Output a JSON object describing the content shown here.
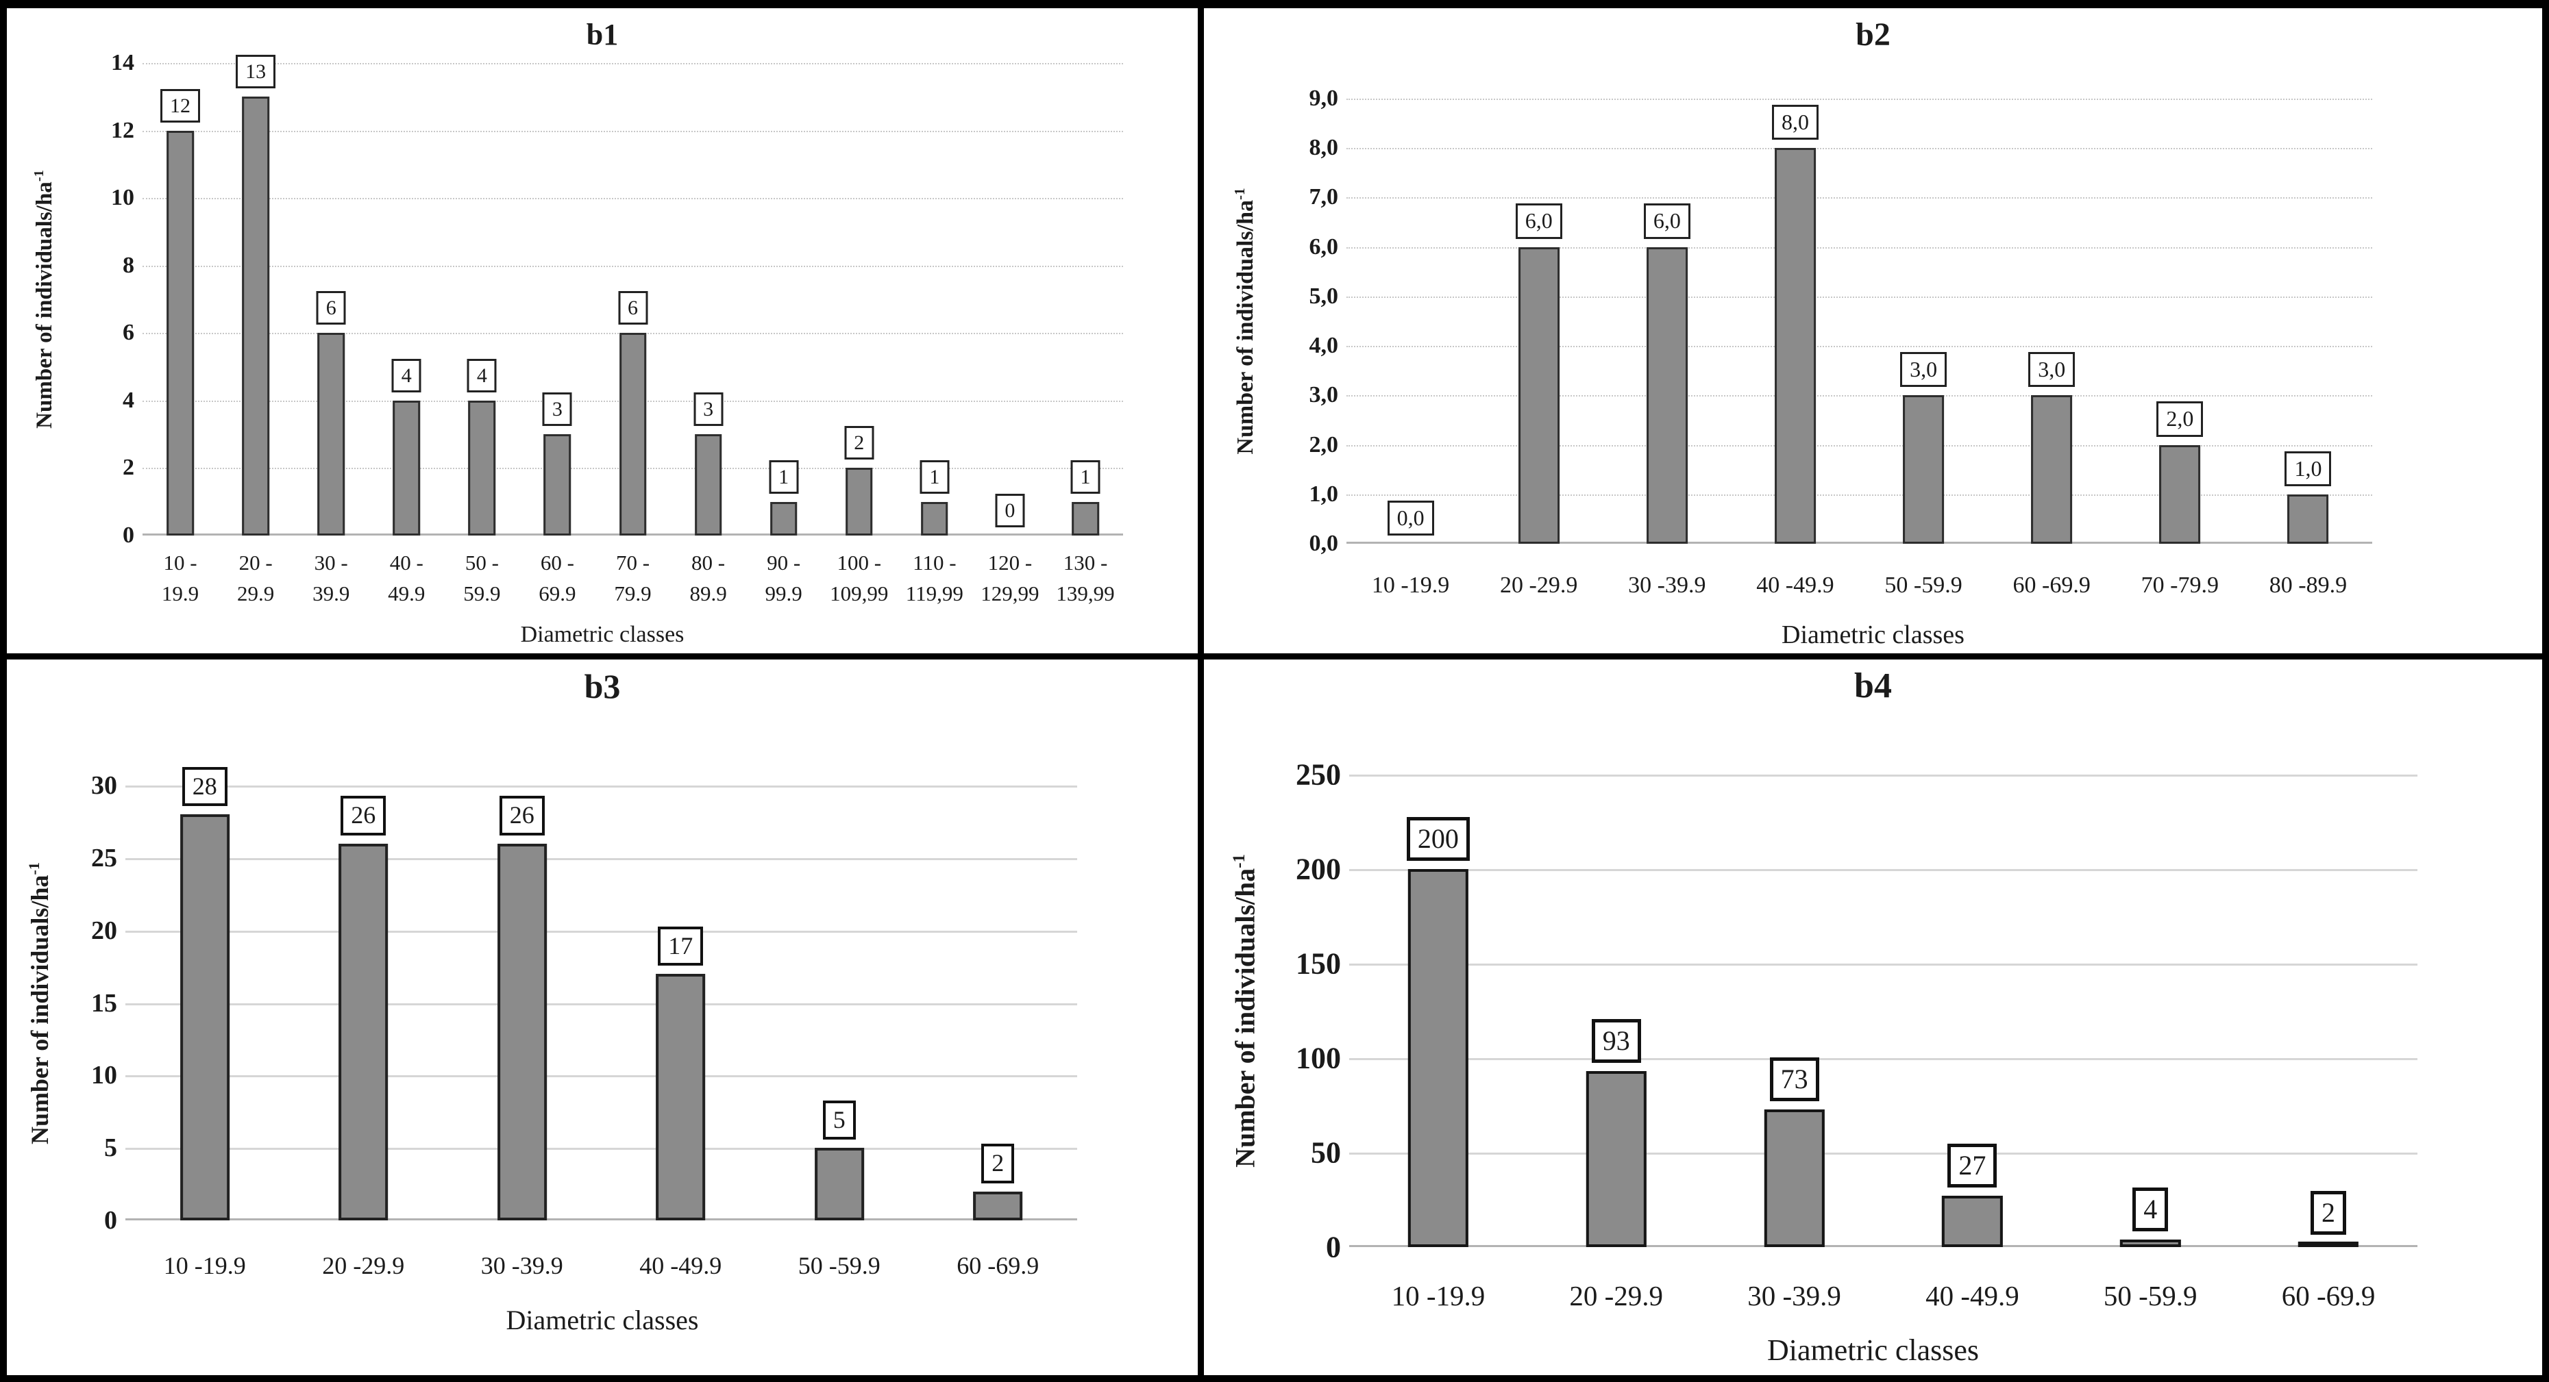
{
  "figure": {
    "background": "#ffffff",
    "border_color": "#000000",
    "bar_fill": "#8b8b8b",
    "bar_border": "#2b2b2b",
    "grid_color": "#d0d0d0",
    "text_color": "#1b1b1b"
  },
  "chart_data": [
    {
      "type": "bar",
      "title": "b1",
      "ylabel": "Number of individuals/ha",
      "ylabel_sup": "-1",
      "xlabel": "Diametric classes",
      "categories": [
        [
          "10 -",
          "19.9"
        ],
        [
          "20 -",
          "29.9"
        ],
        [
          "30 -",
          "39.9"
        ],
        [
          "40 -",
          "49.9"
        ],
        [
          "50 -",
          "59.9"
        ],
        [
          "60 -",
          "69.9"
        ],
        [
          "70 -",
          "79.9"
        ],
        [
          "80 -",
          "89.9"
        ],
        [
          "90 -",
          "99.9"
        ],
        [
          "100 -",
          "109,99"
        ],
        [
          "110 -",
          "119,99"
        ],
        [
          "120 -",
          "129,99"
        ],
        [
          "130 -",
          "139,99"
        ]
      ],
      "values": [
        12,
        13,
        6,
        4,
        4,
        3,
        6,
        3,
        1,
        2,
        1,
        0,
        1
      ],
      "data_labels": [
        "12",
        "13",
        "6",
        "4",
        "4",
        "3",
        "6",
        "3",
        "1",
        "2",
        "1",
        "0",
        "1"
      ],
      "ylim": [
        0,
        14
      ],
      "yticks": [
        "0",
        "2",
        "4",
        "6",
        "8",
        "10",
        "12",
        "14"
      ],
      "grid": "dotted",
      "legend": "none"
    },
    {
      "type": "bar",
      "title": "b2",
      "ylabel": "Number of individuals/ha",
      "ylabel_sup": "-1",
      "xlabel": "Diametric classes",
      "categories": [
        "10 -19.9",
        "20 -29.9",
        "30 -39.9",
        "40 -49.9",
        "50 -59.9",
        "60 -69.9",
        "70 -79.9",
        "80 -89.9"
      ],
      "values": [
        0,
        6,
        6,
        8,
        3,
        3,
        2,
        1
      ],
      "data_labels": [
        "0,0",
        "6,0",
        "6,0",
        "8,0",
        "3,0",
        "3,0",
        "2,0",
        "1,0"
      ],
      "ylim": [
        0,
        9
      ],
      "yticks": [
        "0,0",
        "1,0",
        "2,0",
        "3,0",
        "4,0",
        "5,0",
        "6,0",
        "7,0",
        "8,0",
        "9,0"
      ],
      "grid": "dotted",
      "legend": "none"
    },
    {
      "type": "bar",
      "title": "b3",
      "ylabel": "Number of individuals/ha",
      "ylabel_sup": "-1",
      "xlabel": "Diametric classes",
      "categories": [
        "10 -19.9",
        "20 -29.9",
        "30 -39.9",
        "40 -49.9",
        "50 -59.9",
        "60 -69.9"
      ],
      "values": [
        28,
        26,
        26,
        17,
        5,
        2
      ],
      "data_labels": [
        "28",
        "26",
        "26",
        "17",
        "5",
        "2"
      ],
      "ylim": [
        0,
        30
      ],
      "yticks": [
        "0",
        "5",
        "10",
        "15",
        "20",
        "25",
        "30"
      ],
      "grid": "solid",
      "legend": "none"
    },
    {
      "type": "bar",
      "title": "b4",
      "ylabel": "Number of individuals/ha",
      "ylabel_sup": "-1",
      "xlabel": "Diametric classes",
      "categories": [
        "10 -19.9",
        "20 -29.9",
        "30 -39.9",
        "40 -49.9",
        "50 -59.9",
        "60 -69.9"
      ],
      "values": [
        200,
        93,
        73,
        27,
        4,
        2
      ],
      "data_labels": [
        "200",
        "93",
        "73",
        "27",
        "4",
        "2"
      ],
      "ylim": [
        0,
        250
      ],
      "yticks": [
        "0",
        "50",
        "100",
        "150",
        "200",
        "250"
      ],
      "grid": "solid",
      "legend": "none"
    }
  ]
}
